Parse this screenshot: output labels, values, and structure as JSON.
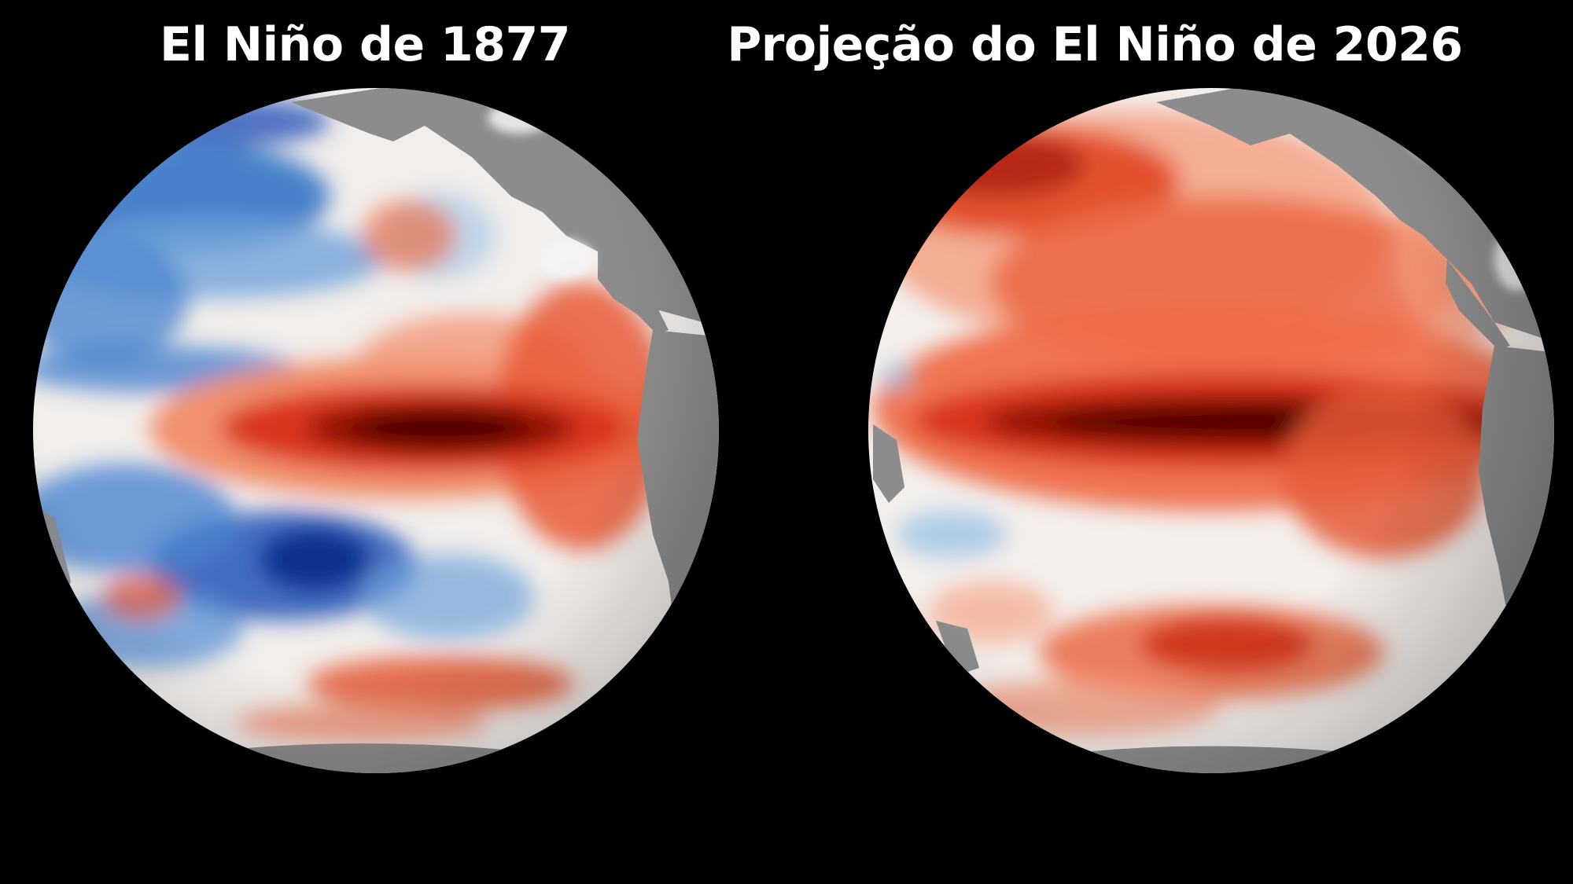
{
  "panels": [
    {
      "title": "El Niño de 1877"
    },
    {
      "title": "Projeção do El Niño de 2026"
    }
  ],
  "colors": {
    "background": "#000000",
    "land": "#8a8a8a",
    "ocean_neutral": "#f4f1ee",
    "anomaly_warm_light": "#f3a58a",
    "anomaly_warm": "#e0421f",
    "anomaly_warm_extreme": "#4a0404",
    "anomaly_cool_light": "#9cc3e6",
    "anomaly_cool": "#2a6fc4",
    "anomaly_cool_extreme": "#0a2a8a"
  }
}
